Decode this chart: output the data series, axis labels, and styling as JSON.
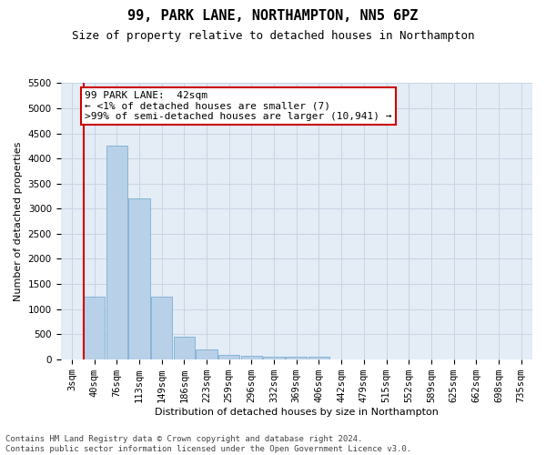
{
  "title": "99, PARK LANE, NORTHAMPTON, NN5 6PZ",
  "subtitle": "Size of property relative to detached houses in Northampton",
  "xlabel": "Distribution of detached houses by size in Northampton",
  "ylabel": "Number of detached properties",
  "categories": [
    "3sqm",
    "40sqm",
    "76sqm",
    "113sqm",
    "149sqm",
    "186sqm",
    "223sqm",
    "259sqm",
    "296sqm",
    "332sqm",
    "369sqm",
    "406sqm",
    "442sqm",
    "479sqm",
    "515sqm",
    "552sqm",
    "589sqm",
    "625sqm",
    "662sqm",
    "698sqm",
    "735sqm"
  ],
  "values": [
    0,
    1250,
    4250,
    3200,
    1250,
    450,
    200,
    90,
    60,
    50,
    50,
    50,
    0,
    0,
    0,
    0,
    0,
    0,
    0,
    0,
    0
  ],
  "bar_color": "#b8d0e8",
  "bar_edge_color": "#7aafd4",
  "annotation_text": "99 PARK LANE:  42sqm\n← <1% of detached houses are smaller (7)\n>99% of semi-detached houses are larger (10,941) →",
  "annotation_box_facecolor": "#ffffff",
  "annotation_box_edgecolor": "#cc0000",
  "property_line_color": "#cc0000",
  "ylim": [
    0,
    5500
  ],
  "yticks": [
    0,
    500,
    1000,
    1500,
    2000,
    2500,
    3000,
    3500,
    4000,
    4500,
    5000,
    5500
  ],
  "footer": "Contains HM Land Registry data © Crown copyright and database right 2024.\nContains public sector information licensed under the Open Government Licence v3.0.",
  "background_color": "#ffffff",
  "plot_bg_color": "#e4ecf5",
  "grid_color": "#c8d4e4",
  "title_fontsize": 11,
  "subtitle_fontsize": 9,
  "axis_label_fontsize": 8,
  "tick_fontsize": 7.5,
  "annotation_fontsize": 8,
  "footer_fontsize": 6.5
}
